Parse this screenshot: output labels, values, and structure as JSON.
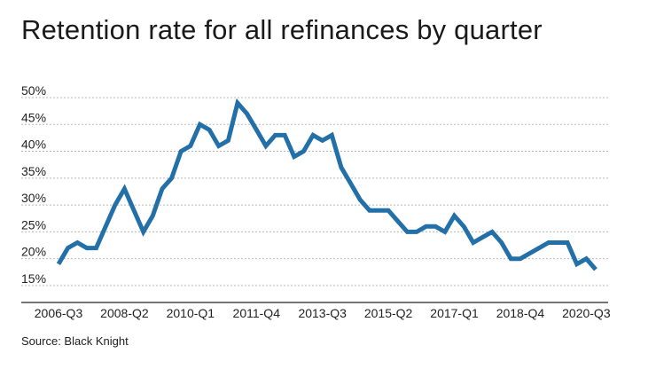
{
  "title": "Retention rate for all refinances by quarter",
  "source": "Source: Black Knight",
  "colors": {
    "line": "#2370a8",
    "grid": "#b8b8b8",
    "axis": "#222222"
  },
  "chart_data": {
    "type": "line",
    "title": "Retention rate for all refinances by quarter",
    "xlabel": "",
    "ylabel": "",
    "ylim": [
      14,
      50
    ],
    "yticks": [
      15,
      20,
      25,
      30,
      35,
      40,
      45,
      50
    ],
    "ytick_labels": [
      "15%",
      "20%",
      "25%",
      "30%",
      "35%",
      "40%",
      "45%",
      "50%"
    ],
    "xtick_labels": [
      "2006-Q3",
      "2008-Q2",
      "2010-Q1",
      "2011-Q4",
      "2013-Q3",
      "2015-Q2",
      "2017-Q1",
      "2018-Q4",
      "2020-Q3"
    ],
    "xtick_indices": [
      0,
      7,
      14,
      21,
      28,
      35,
      42,
      49,
      56
    ],
    "series": [
      {
        "name": "Retention rate",
        "values": [
          19,
          22,
          23,
          22,
          22,
          26,
          30,
          33,
          29,
          25,
          28,
          33,
          35,
          40,
          41,
          45,
          44,
          41,
          42,
          49,
          47,
          44,
          41,
          43,
          43,
          39,
          40,
          43,
          42,
          43,
          37,
          34,
          31,
          29,
          29,
          29,
          27,
          25,
          25,
          26,
          26,
          25,
          28,
          26,
          23,
          24,
          25,
          23,
          20,
          20,
          21,
          22,
          23,
          23,
          23,
          19,
          20,
          18
        ]
      }
    ]
  }
}
